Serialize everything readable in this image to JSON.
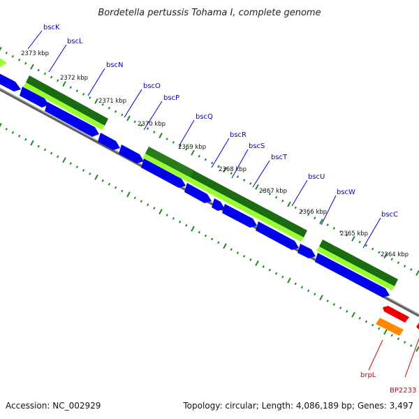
{
  "title": "Bordetella pertussis Tohama I, complete genome",
  "footer": {
    "accession": "Accession: NC_002929",
    "topology": "Topology: circular; Length: 4,086,189 bp; Genes: 3,497"
  },
  "ruler": [
    "2373 kbp",
    "2372 kbp",
    "2371 kbp",
    "2370 kbp",
    "2369 kbp",
    "2368 kbp",
    "2367 kbp",
    "2366 kbp",
    "2365 kbp",
    "2364 kbp"
  ],
  "genes": [
    {
      "name": "bscK",
      "color": "#0000cc"
    },
    {
      "name": "bscL",
      "color": "#0000cc"
    },
    {
      "name": "bscN",
      "color": "#0000cc"
    },
    {
      "name": "bscO",
      "color": "#0000cc"
    },
    {
      "name": "bscP",
      "color": "#0000cc"
    },
    {
      "name": "bscQ",
      "color": "#0000cc"
    },
    {
      "name": "bscR",
      "color": "#0000cc"
    },
    {
      "name": "bscS",
      "color": "#0000cc"
    },
    {
      "name": "bscT",
      "color": "#0000cc"
    },
    {
      "name": "bscU",
      "color": "#0000cc"
    },
    {
      "name": "bscW",
      "color": "#0000cc"
    },
    {
      "name": "bscC",
      "color": "#0000cc"
    },
    {
      "name": "brpL",
      "color": "#cc0000"
    },
    {
      "name": "BP2233",
      "color": "#cc0000"
    }
  ],
  "colors": {
    "cds": "#0000ee",
    "cds_top": "#4444ff",
    "rna_dark": "#1a6b12",
    "rna_light": "#99ff33",
    "backbone": "#888888",
    "ticks": "#1a8a1a",
    "reverse_red": "#ee0000",
    "reverse_orange": "#ff8800"
  }
}
